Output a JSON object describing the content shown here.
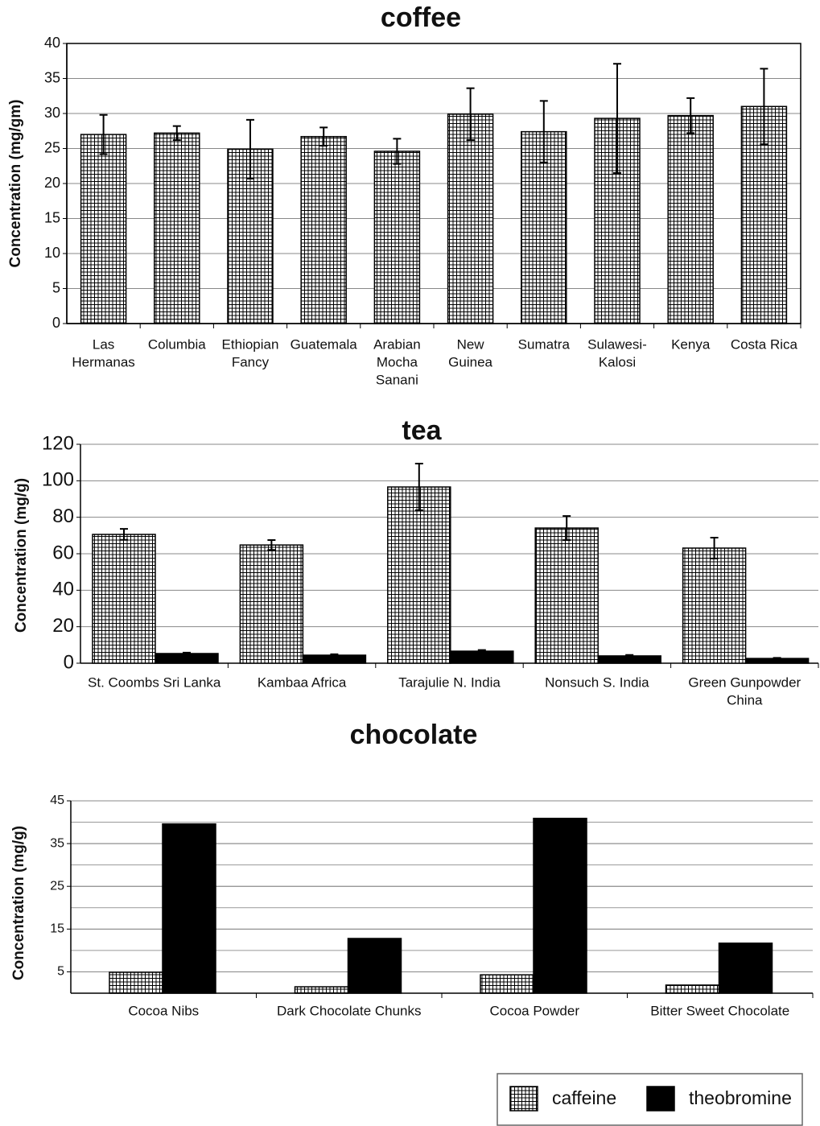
{
  "chart_data": [
    {
      "type": "bar",
      "title": "coffee",
      "y_label": "Concentration (mg/gm)",
      "categories": [
        [
          "Las",
          "Hermanas"
        ],
        [
          "Columbia"
        ],
        [
          "Ethiopian",
          "Fancy"
        ],
        [
          "Guatemala"
        ],
        [
          "Arabian",
          "Mocha",
          "Sanani"
        ],
        [
          "New",
          "Guinea"
        ],
        [
          "Sumatra"
        ],
        [
          "Sulawesi-",
          "Kalosi"
        ],
        [
          "Kenya"
        ],
        [
          "Costa Rica"
        ]
      ],
      "values": [
        27,
        27.2,
        24.9,
        26.7,
        24.6,
        29.9,
        27.4,
        29.3,
        29.7,
        31
      ],
      "errors": [
        2.8,
        1,
        4.2,
        1.3,
        1.8,
        3.7,
        4.4,
        7.8,
        2.5,
        5.4
      ],
      "color": "#000000",
      "pattern": "grid",
      "ylim": [
        0,
        40
      ],
      "yticks": [
        0,
        5,
        10,
        15,
        20,
        25,
        30,
        35,
        40
      ],
      "grid": true,
      "frame": true
    },
    {
      "type": "grouped-bar",
      "title": "tea",
      "y_label": "Concentration (mg/g)",
      "categories": [
        [
          "St. Coombs Sri Lanka"
        ],
        [
          "Kambaa Africa"
        ],
        [
          "Tarajulie N. India"
        ],
        [
          "Nonsuch S. India"
        ],
        [
          "Green Gunpowder",
          "China"
        ]
      ],
      "series": [
        {
          "color": "#000000",
          "pattern": "grid",
          "values": [
            70.6,
            64.8,
            96.6,
            74.1,
            63.1
          ],
          "errors": [
            3,
            2.7,
            12.8,
            6.6,
            5.7
          ]
        },
        {
          "color": "#000000",
          "pattern": "solid",
          "values": [
            5.3,
            4.4,
            6.6,
            4,
            2.6
          ],
          "errors": [
            0.5,
            0.5,
            0.6,
            0.5,
            0.3
          ]
        }
      ],
      "ylim": [
        0,
        120
      ],
      "yticks": [
        0,
        20,
        40,
        60,
        80,
        100,
        120
      ],
      "grid": true
    },
    {
      "type": "grouped-bar",
      "title": "chocolate",
      "y_label": "Concentration (mg/g)",
      "categories": [
        [
          "Cocoa Nibs"
        ],
        [
          "Dark Chocolate Chunks"
        ],
        [
          "Cocoa Powder"
        ],
        [
          "Bitter Sweet Chocolate"
        ]
      ],
      "series": [
        {
          "name": "caffeine",
          "color": "#000000",
          "pattern": "grid",
          "values": [
            4.9,
            1.5,
            4.3,
            1.9
          ]
        },
        {
          "name": "theobromine",
          "color": "#000000",
          "pattern": "solid",
          "values": [
            39.6,
            12.8,
            40.9,
            11.7
          ]
        }
      ],
      "ylim": [
        0,
        45
      ],
      "yticks": [
        5,
        15,
        25,
        35,
        45
      ],
      "grid": true,
      "minor_grid": true,
      "legend": "bottom-right"
    }
  ]
}
